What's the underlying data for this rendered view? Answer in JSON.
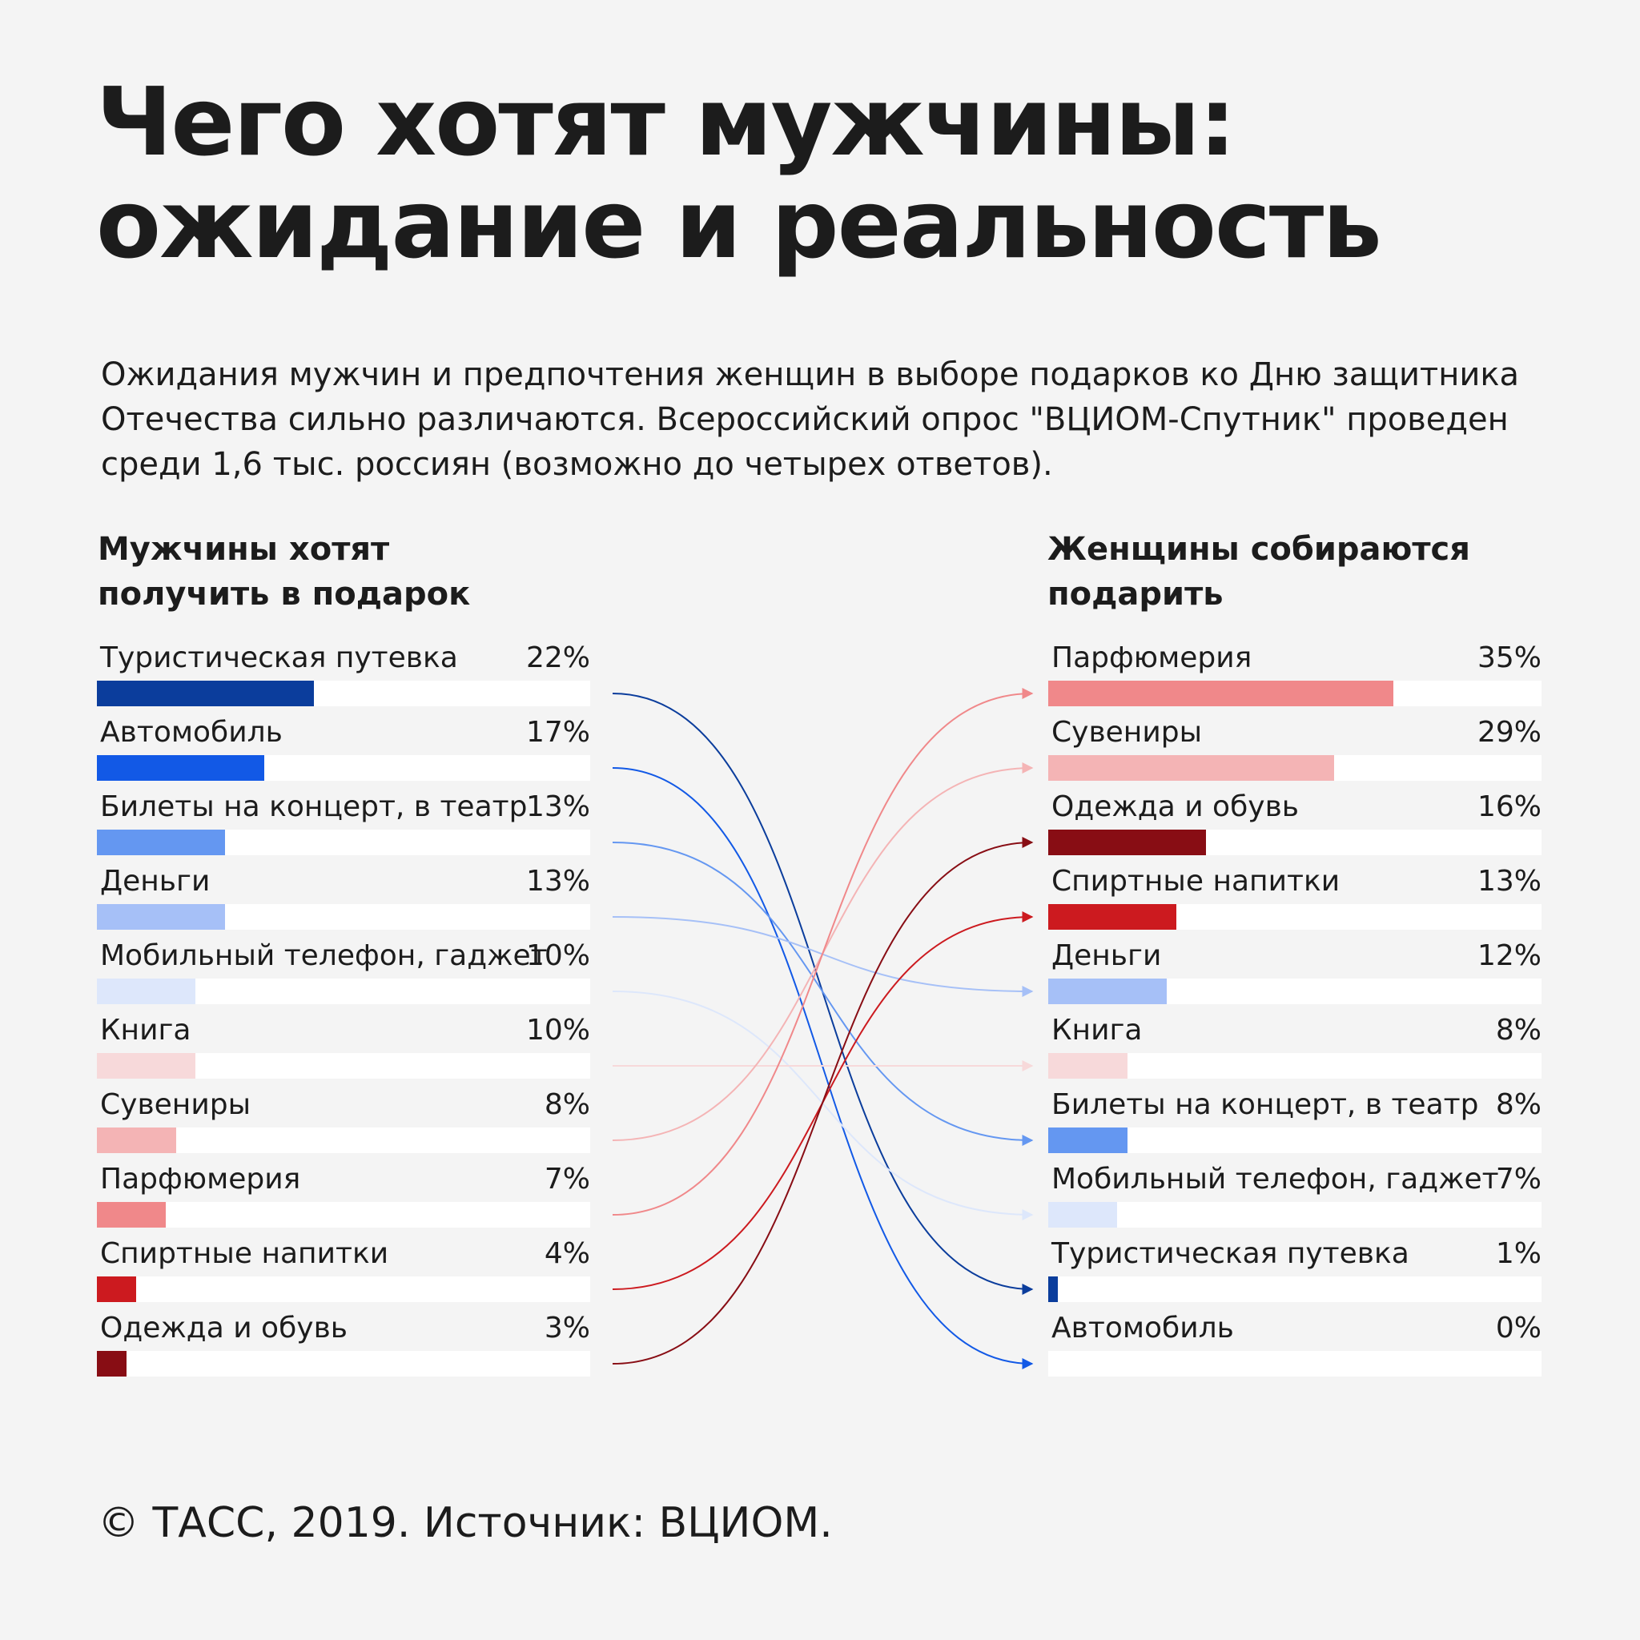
{
  "title_lines": [
    "Чего хотят мужчины:",
    "ожидание и реальность"
  ],
  "lead": "Ожидания мужчин и предпочтения женщин в выборе подарков ко Дню защитника Отечества сильно различаются. Всероссийский опрос \"ВЦИОМ-Спутник\" проведен среди 1,6 тыс. россиян (возможно до четырех ответов).",
  "source": "© ТАСС, 2019. Источник: ВЦИОМ.",
  "chart_data": {
    "type": "bar",
    "value_scale_max": 50,
    "left": {
      "title_lines": [
        "Мужчины хотят",
        "получить в подарок"
      ],
      "items": [
        {
          "label": "Туристическая путевка",
          "value": 22,
          "value_label": "22%",
          "color": "#0b3d9c"
        },
        {
          "label": "Автомобиль",
          "value": 17,
          "value_label": "17%",
          "color": "#1259e6"
        },
        {
          "label": "Билеты на концерт, в театр",
          "value": 13,
          "value_label": "13%",
          "color": "#6497f1"
        },
        {
          "label": "Деньги",
          "value": 13,
          "value_label": "13%",
          "color": "#a6c0f7"
        },
        {
          "label": "Мобильный телефон, гаджет",
          "value": 10,
          "value_label": "10%",
          "color": "#dde7fb"
        },
        {
          "label": "Книга",
          "value": 10,
          "value_label": "10%",
          "color": "#f7d9da"
        },
        {
          "label": "Сувениры",
          "value": 8,
          "value_label": "8%",
          "color": "#f4b4b5"
        },
        {
          "label": "Парфюмерия",
          "value": 7,
          "value_label": "7%",
          "color": "#f0888a"
        },
        {
          "label": "Спиртные напитки",
          "value": 4,
          "value_label": "4%",
          "color": "#cc1a1f"
        },
        {
          "label": "Одежда и обувь",
          "value": 3,
          "value_label": "3%",
          "color": "#880d14"
        }
      ]
    },
    "right": {
      "title_lines": [
        "Женщины собираются",
        "подарить"
      ],
      "items": [
        {
          "label": "Парфюмерия",
          "value": 35,
          "value_label": "35%",
          "color": "#f0888a"
        },
        {
          "label": "Сувениры",
          "value": 29,
          "value_label": "29%",
          "color": "#f4b4b5"
        },
        {
          "label": "Одежда и обувь",
          "value": 16,
          "value_label": "16%",
          "color": "#880d14"
        },
        {
          "label": "Спиртные напитки",
          "value": 13,
          "value_label": "13%",
          "color": "#cc1a1f"
        },
        {
          "label": "Деньги",
          "value": 12,
          "value_label": "12%",
          "color": "#a6c0f7"
        },
        {
          "label": "Книга",
          "value": 8,
          "value_label": "8%",
          "color": "#f7d9da"
        },
        {
          "label": "Билеты на концерт, в театр",
          "value": 8,
          "value_label": "8%",
          "color": "#6497f1"
        },
        {
          "label": "Мобильный телефон, гаджет",
          "value": 7,
          "value_label": "7%",
          "color": "#dde7fb"
        },
        {
          "label": "Туристическая путевка",
          "value": 1,
          "value_label": "1%",
          "color": "#0b3d9c"
        },
        {
          "label": "Автомобиль",
          "value": 0,
          "value_label": "0%",
          "color": "#1259e6"
        }
      ]
    }
  }
}
